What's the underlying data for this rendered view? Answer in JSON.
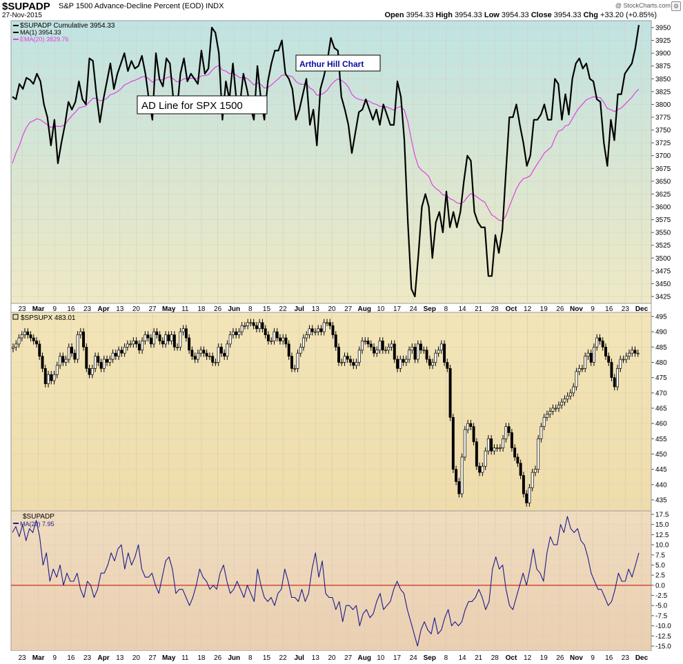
{
  "header": {
    "symbol": "$SUPADP",
    "description": "S&P 1500 Advance-Decline Percent (EOD)  INDX",
    "date": "27-Nov-2015",
    "open_label": "Open",
    "open": "3954.33",
    "high_label": "High",
    "high": "3954.33",
    "low_label": "Low",
    "low": "3954.33",
    "close_label": "Close",
    "close": "3954.33",
    "chg_label": "Chg",
    "chg": "+33.20 (+0.85%)",
    "watermark": "@ StockCharts.com",
    "settings_icon": "gear-icon"
  },
  "colors": {
    "black_line": "#000000",
    "ema_line": "#e040e0",
    "osc_line": "#1a1a8c",
    "zero_line": "#cc0000",
    "annotation_blue": "#0a0aa0"
  },
  "panel1": {
    "legend": [
      "$SUPADP Cumulative 3954.33",
      "MA(1) 3954.33",
      "EMA(20) 3829.76"
    ],
    "annotation_1": "AD Line for SPX 1500",
    "annotation_2": "Arthur Hill Chart",
    "yticks": [
      "3950",
      "3925",
      "3900",
      "3875",
      "3850",
      "3825",
      "3800",
      "3775",
      "3750",
      "3725",
      "3700",
      "3675",
      "3650",
      "3625",
      "3600",
      "3575",
      "3550",
      "3525",
      "3500",
      "3475",
      "3450",
      "3425"
    ]
  },
  "panel2": {
    "legend": "$SPSUPX 483.01",
    "yticks": [
      "495",
      "490",
      "485",
      "480",
      "475",
      "470",
      "465",
      "460",
      "455",
      "450",
      "445",
      "440",
      "435"
    ]
  },
  "panel3": {
    "legend": [
      "$SUPADP",
      "MA(20) 7.95"
    ],
    "yticks": [
      "17.5",
      "15.0",
      "12.5",
      "10.0",
      "7.5",
      "5.0",
      "2.5",
      "0.0",
      "-2.5",
      "-5.0",
      "-7.5",
      "-10.0",
      "-12.5",
      "-15.0"
    ]
  },
  "xaxis": {
    "labels": [
      "23",
      "Mar",
      "9",
      "16",
      "23",
      "Apr",
      "13",
      "20",
      "27",
      "May",
      "11",
      "18",
      "26",
      "Jun",
      "8",
      "15",
      "22",
      "Jul",
      "13",
      "20",
      "27",
      "Aug",
      "10",
      "17",
      "24",
      "Sep",
      "8",
      "14",
      "21",
      "28",
      "Oct",
      "12",
      "19",
      "26",
      "Nov",
      "9",
      "16",
      "23",
      "Dec"
    ]
  },
  "chart_data": [
    {
      "type": "line",
      "title": "$SUPADP",
      "series": [
        {
          "name": "$SUPADP Cumulative 3954.33",
          "values": [
            3815,
            3810,
            3840,
            3830,
            3852,
            3848,
            3840,
            3860,
            3845,
            3800,
            3775,
            3720,
            3770,
            3685,
            3725,
            3760,
            3805,
            3790,
            3805,
            3845,
            3810,
            3800,
            3890,
            3885,
            3820,
            3765,
            3810,
            3845,
            3880,
            3830,
            3860,
            3880,
            3900,
            3865,
            3885,
            3870,
            3875,
            3895,
            3860,
            3810,
            3770,
            3900,
            3850,
            3835,
            3890,
            3880,
            3810,
            3785,
            3860,
            3890,
            3845,
            3860,
            3850,
            3840,
            3905,
            3860,
            3870,
            3950,
            3940,
            3900,
            3770,
            3845,
            3810,
            3880,
            3810,
            3800,
            3860,
            3830,
            3795,
            3770,
            3875,
            3810,
            3770,
            3845,
            3880,
            3905,
            3905,
            3925,
            3860,
            3850,
            3830,
            3770,
            3790,
            3820,
            3850,
            3760,
            3790,
            3720,
            3830,
            3855,
            3885,
            3930,
            3910,
            3905,
            3815,
            3790,
            3760,
            3705,
            3745,
            3785,
            3790,
            3810,
            3790,
            3770,
            3790,
            3760,
            3800,
            3780,
            3760,
            3760,
            3845,
            3815,
            3730,
            3570,
            3440,
            3425,
            3505,
            3600,
            3625,
            3600,
            3500,
            3570,
            3590,
            3550,
            3630,
            3560,
            3590,
            3560,
            3590,
            3650,
            3700,
            3690,
            3590,
            3570,
            3560,
            3560,
            3465,
            3465,
            3545,
            3510,
            3555,
            3665,
            3775,
            3775,
            3800,
            3760,
            3725,
            3680,
            3700,
            3770,
            3770,
            3780,
            3800,
            3770,
            3770,
            3850,
            3840,
            3770,
            3820,
            3780,
            3850,
            3880,
            3890,
            3870,
            3880,
            3850,
            3845,
            3810,
            3805,
            3725,
            3680,
            3770,
            3730,
            3820,
            3820,
            3860,
            3870,
            3880,
            3910,
            3955
          ]
        },
        {
          "name": "EMA(20) 3829.76",
          "values": [
            3685,
            3705,
            3720,
            3740,
            3755,
            3765,
            3768,
            3772,
            3770,
            3765,
            3760,
            3755,
            3758,
            3757,
            3757,
            3761,
            3770,
            3778,
            3785,
            3793,
            3795,
            3797,
            3805,
            3812,
            3812,
            3807,
            3808,
            3812,
            3819,
            3821,
            3825,
            3830,
            3838,
            3841,
            3845,
            3847,
            3850,
            3854,
            3854,
            3850,
            3843,
            3848,
            3848,
            3848,
            3852,
            3854,
            3850,
            3844,
            3846,
            3850,
            3850,
            3851,
            3851,
            3850,
            3856,
            3856,
            3858,
            3866,
            3873,
            3876,
            3867,
            3865,
            3860,
            3862,
            3857,
            3852,
            3853,
            3851,
            3845,
            3838,
            3842,
            3839,
            3832,
            3833,
            3838,
            3844,
            3850,
            3857,
            3857,
            3856,
            3854,
            3845,
            3840,
            3839,
            3840,
            3832,
            3828,
            3818,
            3819,
            3822,
            3828,
            3838,
            3845,
            3850,
            3847,
            3842,
            3834,
            3820,
            3813,
            3810,
            3808,
            3808,
            3806,
            3802,
            3800,
            3796,
            3796,
            3795,
            3792,
            3789,
            3794,
            3796,
            3789,
            3766,
            3731,
            3700,
            3679,
            3671,
            3666,
            3659,
            3643,
            3636,
            3631,
            3623,
            3623,
            3616,
            3613,
            3608,
            3606,
            3610,
            3619,
            3626,
            3623,
            3618,
            3613,
            3609,
            3596,
            3584,
            3580,
            3574,
            3573,
            3582,
            3601,
            3618,
            3635,
            3647,
            3655,
            3657,
            3661,
            3673,
            3684,
            3694,
            3705,
            3711,
            3717,
            3734,
            3748,
            3750,
            3758,
            3760,
            3772,
            3784,
            3794,
            3801,
            3809,
            3812,
            3815,
            3814,
            3813,
            3804,
            3792,
            3790,
            3786,
            3790,
            3793,
            3800,
            3807,
            3814,
            3823,
            3830
          ]
        }
      ],
      "ylim": [
        3425,
        3950
      ]
    },
    {
      "type": "candlestick",
      "title": "$SPSUPX 483.01",
      "values": [
        485,
        486,
        488,
        489,
        490,
        489,
        488,
        487,
        486,
        482,
        478,
        473,
        476,
        474,
        476,
        479,
        482,
        480,
        481,
        485,
        483,
        481,
        489,
        490,
        485,
        478,
        476,
        478,
        482,
        480,
        478,
        481,
        480,
        481,
        483,
        482,
        484,
        483,
        485,
        486,
        486,
        487,
        486,
        484,
        487,
        489,
        488,
        486,
        490,
        489,
        487,
        486,
        489,
        487,
        489,
        485,
        485,
        490,
        491,
        488,
        484,
        482,
        481,
        483,
        484,
        483,
        482,
        482,
        480,
        480,
        485,
        483,
        482,
        486,
        489,
        490,
        489,
        490,
        492,
        492,
        493,
        493,
        492,
        491,
        493,
        491,
        489,
        487,
        487,
        490,
        488,
        487,
        488,
        486,
        482,
        478,
        478,
        483,
        485,
        488,
        489,
        491,
        490,
        490,
        491,
        490,
        493,
        493,
        492,
        489,
        485,
        480,
        480,
        482,
        481,
        480,
        479,
        480,
        484,
        487,
        487,
        486,
        485,
        483,
        484,
        487,
        484,
        484,
        485,
        486,
        481,
        478,
        481,
        480,
        481,
        484,
        485,
        481,
        486,
        484,
        484,
        481,
        479,
        480,
        483,
        484,
        486,
        480,
        478,
        462,
        445,
        441,
        437,
        449,
        458,
        460,
        459,
        454,
        446,
        444,
        446,
        451,
        455,
        451,
        452,
        452,
        452,
        455,
        459,
        457,
        452,
        449,
        447,
        443,
        437,
        434,
        439,
        444,
        445,
        455,
        459,
        462,
        463,
        464,
        465,
        465,
        466,
        467,
        468,
        469,
        470,
        472,
        477,
        478,
        478,
        482,
        483,
        480,
        485,
        488,
        487,
        485,
        482,
        480,
        475,
        472,
        478,
        481,
        481,
        482,
        483,
        484,
        483,
        483
      ],
      "ylim": [
        433,
        496
      ]
    },
    {
      "type": "line",
      "title": "$SUPADP",
      "series": [
        {
          "name": "MA(20) 7.95",
          "values": [
            13,
            14.5,
            12,
            15,
            11,
            14,
            13,
            16,
            12,
            5,
            8,
            1,
            4,
            2,
            5,
            0,
            3,
            1,
            1,
            3,
            -1,
            -3,
            1,
            0,
            -3,
            -1,
            3,
            3,
            5,
            8,
            6,
            9,
            10,
            4,
            8,
            5,
            7,
            10,
            4,
            2,
            2,
            3,
            0,
            -2,
            2,
            6,
            7,
            4,
            -2,
            -1,
            -1,
            -3,
            -5,
            -3,
            0,
            4,
            2,
            1,
            -1,
            0,
            -1,
            3,
            5,
            1,
            -2,
            -1,
            1,
            -1,
            -3,
            0,
            -2,
            -4,
            4,
            0,
            -3,
            -4,
            -3,
            -5,
            -2,
            -1,
            4,
            1,
            -3,
            -3,
            -4,
            -1,
            -4,
            -2,
            4,
            8,
            2,
            6,
            -2,
            -3,
            -3,
            -6,
            -4,
            -9,
            -5,
            -5,
            -6,
            -5,
            -10,
            -7,
            -6,
            -8,
            -7,
            -4,
            -2,
            -6,
            -5,
            -4,
            -1,
            1,
            -1,
            -2,
            -6,
            -9,
            -12,
            -15,
            -11,
            -9,
            -11,
            -12,
            -8,
            -12,
            -11,
            -8,
            -6,
            -10,
            -9,
            -10,
            -9,
            -6,
            -4,
            -4,
            -3,
            -1,
            -3,
            -6,
            -4,
            4,
            7,
            4,
            5,
            -1,
            -5,
            -6,
            -3,
            0,
            3,
            0,
            4,
            9,
            4,
            3,
            1,
            8,
            12,
            10,
            10,
            15,
            13,
            17,
            14,
            13,
            14,
            11,
            10,
            7,
            3,
            1,
            -1,
            -1,
            -3,
            -5,
            -4,
            -1,
            3,
            1,
            1,
            4,
            2,
            5,
            8
          ]
        }
      ],
      "ylim": [
        -16,
        18
      ]
    }
  ]
}
